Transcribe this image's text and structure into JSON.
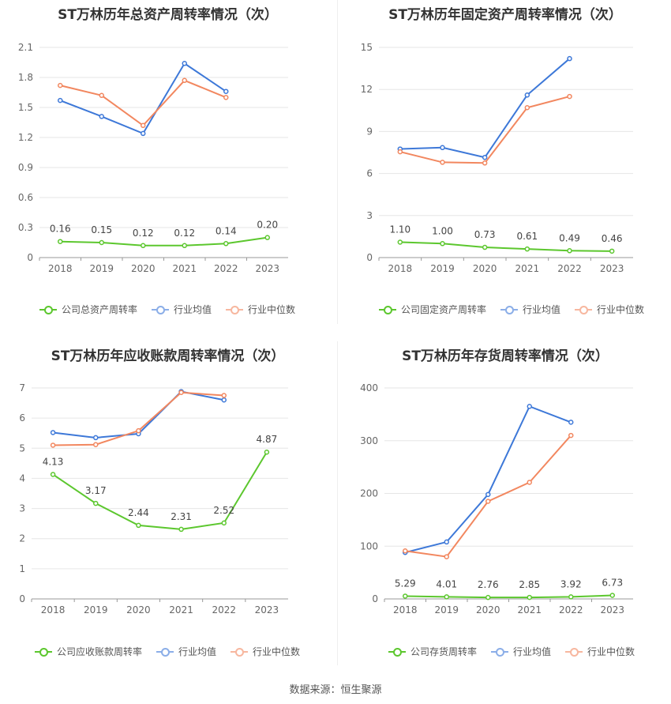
{
  "series_colors": {
    "company": "#5cc72e",
    "avg": "#3d78d8",
    "median": "#f2875f"
  },
  "source": "数据来源：恒生聚源",
  "chart_data": [
    {
      "type": "line",
      "title": "ST万林历年总资产周转率情况（次）",
      "categories": [
        "2018",
        "2019",
        "2020",
        "2021",
        "2022",
        "2023"
      ],
      "yticks": [
        "0",
        "0.3",
        "0.6",
        "0.9",
        "1.2",
        "1.5",
        "1.8",
        "2.1"
      ],
      "ylim": [
        0,
        2.1
      ],
      "series": [
        {
          "name": "公司总资产周转率",
          "key": "company",
          "values": [
            0.16,
            0.15,
            0.12,
            0.12,
            0.14,
            0.2
          ],
          "labels": [
            "0.16",
            "0.15",
            "0.12",
            "0.12",
            "0.14",
            "0.20"
          ]
        },
        {
          "name": "行业均值",
          "key": "avg",
          "values": [
            1.57,
            1.41,
            1.24,
            1.94,
            1.66,
            null
          ]
        },
        {
          "name": "行业中位数",
          "key": "median",
          "values": [
            1.72,
            1.62,
            1.32,
            1.77,
            1.6,
            null
          ]
        }
      ]
    },
    {
      "type": "line",
      "title": "ST万林历年固定资产周转率情况（次）",
      "categories": [
        "2018",
        "2019",
        "2020",
        "2021",
        "2022",
        "2023"
      ],
      "yticks": [
        "0",
        "3",
        "6",
        "9",
        "12",
        "15"
      ],
      "ylim": [
        0,
        15
      ],
      "series": [
        {
          "name": "公司固定资产周转率",
          "key": "company",
          "values": [
            1.1,
            1.0,
            0.73,
            0.61,
            0.49,
            0.46
          ],
          "labels": [
            "1.10",
            "1.00",
            "0.73",
            "0.61",
            "0.49",
            "0.46"
          ]
        },
        {
          "name": "行业均值",
          "key": "avg",
          "values": [
            7.75,
            7.85,
            7.15,
            11.6,
            14.2,
            null
          ]
        },
        {
          "name": "行业中位数",
          "key": "median",
          "values": [
            7.55,
            6.8,
            6.75,
            10.7,
            11.5,
            null
          ]
        }
      ]
    },
    {
      "type": "line",
      "title": "ST万林历年应收账款周转率情况（次）",
      "categories": [
        "2018",
        "2019",
        "2020",
        "2021",
        "2022",
        "2023"
      ],
      "yticks": [
        "0",
        "1",
        "2",
        "3",
        "4",
        "5",
        "6",
        "7"
      ],
      "ylim": [
        0,
        7
      ],
      "series": [
        {
          "name": "公司应收账款周转率",
          "key": "company",
          "values": [
            4.13,
            3.17,
            2.44,
            2.31,
            2.52,
            4.87
          ],
          "labels": [
            "4.13",
            "3.17",
            "2.44",
            "2.31",
            "2.52",
            "4.87"
          ]
        },
        {
          "name": "行业均值",
          "key": "avg",
          "values": [
            5.52,
            5.35,
            5.48,
            6.88,
            6.6,
            null
          ]
        },
        {
          "name": "行业中位数",
          "key": "median",
          "values": [
            5.1,
            5.12,
            5.58,
            6.85,
            6.75,
            null
          ]
        }
      ]
    },
    {
      "type": "line",
      "title": "ST万林历年存货周转率情况（次）",
      "categories": [
        "2018",
        "2019",
        "2020",
        "2021",
        "2022",
        "2023"
      ],
      "yticks": [
        "0",
        "100",
        "200",
        "300",
        "400"
      ],
      "ylim": [
        0,
        400
      ],
      "series": [
        {
          "name": "公司存货周转率",
          "key": "company",
          "values": [
            5.29,
            4.01,
            2.76,
            2.85,
            3.92,
            6.73
          ],
          "labels": [
            "5.29",
            "4.01",
            "2.76",
            "2.85",
            "3.92",
            "6.73"
          ]
        },
        {
          "name": "行业均值",
          "key": "avg",
          "values": [
            88,
            108,
            198,
            365,
            335,
            null
          ]
        },
        {
          "name": "行业中位数",
          "key": "median",
          "values": [
            91,
            80,
            185,
            221,
            310,
            null
          ]
        }
      ]
    }
  ]
}
